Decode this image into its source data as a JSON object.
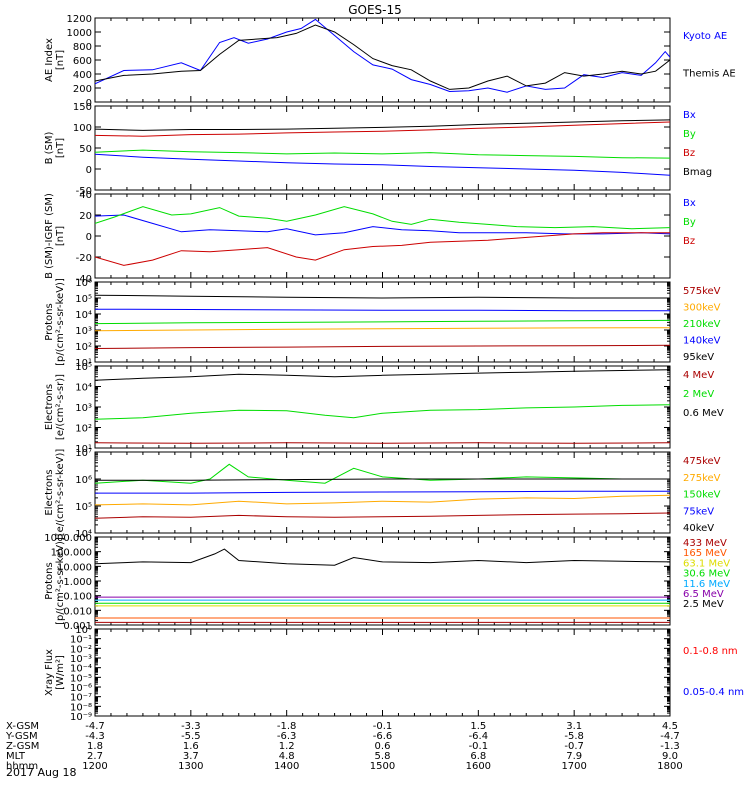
{
  "title": "GOES-15",
  "date": "2017 Aug 18",
  "ephemeris": {
    "row_labels": [
      "X-GSM",
      "Y-GSM",
      "Z-GSM",
      "MLT",
      "hhmm"
    ],
    "columns": [
      [
        "-4.7",
        "-4.3",
        "1.8",
        "2.7",
        "1200"
      ],
      [
        "-3.3",
        "-5.5",
        "1.6",
        "3.7",
        "1300"
      ],
      [
        "-1.8",
        "-6.3",
        "1.2",
        "4.8",
        "1400"
      ],
      [
        "-0.1",
        "-6.6",
        "0.6",
        "5.8",
        "1500"
      ],
      [
        "1.5",
        "-6.4",
        "-0.1",
        "6.8",
        "1600"
      ],
      [
        "3.1",
        "-5.8",
        "-0.7",
        "7.9",
        "1700"
      ],
      [
        "4.5",
        "-4.7",
        "-1.3",
        "9.0",
        "1800"
      ]
    ]
  },
  "chart_data": [
    {
      "type": "line",
      "ylabel": "AE Index [nT]",
      "ylim": [
        0,
        1200
      ],
      "yticks": [
        "0",
        "200",
        "400",
        "600",
        "800",
        "1000",
        "1200"
      ],
      "x_hours": [
        12,
        18
      ],
      "series": [
        {
          "name": "Kyoto AE",
          "color": "#0000ff",
          "x": [
            12.0,
            12.3,
            12.6,
            12.9,
            13.1,
            13.3,
            13.45,
            13.6,
            13.8,
            14.0,
            14.15,
            14.3,
            14.5,
            14.7,
            14.9,
            15.1,
            15.3,
            15.5,
            15.7,
            15.9,
            16.1,
            16.3,
            16.5,
            16.7,
            16.9,
            17.1,
            17.3,
            17.5,
            17.7,
            17.85,
            17.95,
            18.0
          ],
          "y": [
            260,
            450,
            460,
            560,
            450,
            850,
            920,
            840,
            900,
            1000,
            1050,
            1180,
            950,
            720,
            530,
            470,
            320,
            250,
            150,
            160,
            200,
            140,
            230,
            180,
            200,
            390,
            350,
            420,
            380,
            560,
            720,
            640
          ]
        },
        {
          "name": "Themis AE",
          "color": "#000000",
          "x": [
            12.0,
            12.3,
            12.6,
            12.9,
            13.1,
            13.3,
            13.5,
            13.7,
            13.9,
            14.1,
            14.3,
            14.5,
            14.7,
            14.9,
            15.1,
            15.3,
            15.5,
            15.7,
            15.9,
            16.1,
            16.3,
            16.5,
            16.7,
            16.9,
            17.1,
            17.3,
            17.5,
            17.7,
            17.85,
            18.0
          ],
          "y": [
            300,
            380,
            400,
            440,
            450,
            680,
            880,
            900,
            920,
            980,
            1100,
            1000,
            820,
            620,
            520,
            460,
            300,
            180,
            200,
            300,
            370,
            230,
            270,
            420,
            370,
            400,
            440,
            400,
            440,
            600
          ]
        }
      ]
    },
    {
      "type": "line",
      "ylabel": "B (SM) [nT]",
      "ylim": [
        -50,
        150
      ],
      "yticks": [
        "-50",
        "0",
        "50",
        "100",
        "150"
      ],
      "x_hours": [
        12,
        18
      ],
      "series": [
        {
          "name": "Bx",
          "color": "#0000ff",
          "x": [
            12.0,
            12.5,
            13.0,
            13.5,
            14.0,
            14.5,
            15.0,
            15.5,
            16.0,
            16.5,
            17.0,
            17.5,
            18.0
          ],
          "y": [
            35,
            28,
            23,
            19,
            15,
            12,
            10,
            6,
            3,
            0,
            -3,
            -8,
            -15
          ]
        },
        {
          "name": "By",
          "color": "#00dd00",
          "x": [
            12.0,
            12.5,
            13.0,
            13.5,
            14.0,
            14.5,
            15.0,
            15.5,
            16.0,
            16.5,
            17.0,
            17.5,
            18.0
          ],
          "y": [
            40,
            45,
            41,
            39,
            36,
            38,
            36,
            39,
            34,
            32,
            30,
            27,
            26
          ]
        },
        {
          "name": "Bz",
          "color": "#cc0000",
          "x": [
            12.0,
            12.5,
            13.0,
            13.5,
            14.0,
            14.5,
            15.0,
            15.5,
            16.0,
            16.5,
            17.0,
            17.5,
            18.0
          ],
          "y": [
            80,
            78,
            82,
            83,
            86,
            88,
            90,
            93,
            97,
            100,
            104,
            108,
            112
          ]
        },
        {
          "name": "Bmag",
          "color": "#000000",
          "x": [
            12.0,
            12.5,
            13.0,
            13.5,
            14.0,
            14.5,
            15.0,
            15.5,
            16.0,
            16.5,
            17.0,
            17.5,
            18.0
          ],
          "y": [
            95,
            92,
            94,
            94,
            95,
            97,
            99,
            102,
            106,
            109,
            112,
            115,
            117
          ]
        }
      ]
    },
    {
      "type": "line",
      "ylabel": "B (SM)-IGRF (SM) [nT]",
      "ylim": [
        -40,
        40
      ],
      "yticks": [
        "-40",
        "-20",
        "0",
        "20",
        "40"
      ],
      "x_hours": [
        12,
        18
      ],
      "series": [
        {
          "name": "Bx",
          "color": "#0000ff",
          "x": [
            12.0,
            12.3,
            12.6,
            12.9,
            13.2,
            13.5,
            13.8,
            14.0,
            14.3,
            14.6,
            14.9,
            15.2,
            15.5,
            15.8,
            16.1,
            16.5,
            16.9,
            17.3,
            17.7,
            18.0
          ],
          "y": [
            19,
            20,
            12,
            4,
            6,
            5,
            4,
            7,
            1,
            3,
            9,
            6,
            5,
            3,
            3,
            3,
            2,
            2,
            3,
            2
          ]
        },
        {
          "name": "By",
          "color": "#00dd00",
          "x": [
            12.0,
            12.2,
            12.5,
            12.8,
            13.0,
            13.3,
            13.5,
            13.8,
            14.0,
            14.3,
            14.6,
            14.9,
            15.1,
            15.3,
            15.5,
            15.8,
            16.1,
            16.4,
            16.8,
            17.2,
            17.6,
            18.0
          ],
          "y": [
            12,
            18,
            28,
            20,
            21,
            27,
            19,
            17,
            14,
            20,
            28,
            21,
            14,
            11,
            16,
            13,
            11,
            9,
            8,
            9,
            7,
            8
          ]
        },
        {
          "name": "Bz",
          "color": "#cc0000",
          "x": [
            12.0,
            12.3,
            12.6,
            12.9,
            13.2,
            13.5,
            13.8,
            14.1,
            14.3,
            14.6,
            14.9,
            15.2,
            15.5,
            15.8,
            16.1,
            16.4,
            16.7,
            17.0,
            17.3,
            17.6,
            18.0
          ],
          "y": [
            -20,
            -28,
            -23,
            -14,
            -15,
            -13,
            -11,
            -20,
            -23,
            -13,
            -10,
            -9,
            -6,
            -5,
            -4,
            -2,
            0,
            2,
            3,
            3,
            3
          ]
        }
      ]
    },
    {
      "type": "line",
      "ylabel": "Protons [p/(cm²-s-sr-keV)]",
      "yscale": "log",
      "ylim": [
        10,
        1000000
      ],
      "yticks": [
        "10¹",
        "10²",
        "10³",
        "10⁴",
        "10⁵",
        "10⁶"
      ],
      "x_hours": [
        12,
        18
      ],
      "series": [
        {
          "name": "575keV",
          "color": "#aa0000",
          "x": [
            12,
            13,
            14,
            15,
            16,
            17,
            18
          ],
          "y": [
            70,
            80,
            85,
            95,
            100,
            105,
            110
          ]
        },
        {
          "name": "300keV",
          "color": "#ffaa00",
          "x": [
            12,
            13,
            14,
            15,
            16,
            17,
            18
          ],
          "y": [
            900,
            1000,
            1100,
            1200,
            1300,
            1350,
            1400
          ]
        },
        {
          "name": "210keV",
          "color": "#00dd00",
          "x": [
            12,
            13,
            14,
            15,
            16,
            17,
            18
          ],
          "y": [
            2500,
            2800,
            3000,
            3200,
            3500,
            3800,
            4000
          ]
        },
        {
          "name": "140keV",
          "color": "#0000ff",
          "x": [
            12,
            13,
            14,
            15,
            16,
            17,
            18
          ],
          "y": [
            20000,
            19000,
            18000,
            17000,
            17000,
            16000,
            16000
          ]
        },
        {
          "name": "95keV",
          "color": "#000000",
          "x": [
            12,
            13,
            14,
            15,
            16,
            17,
            18
          ],
          "y": [
            150000,
            130000,
            110000,
            100000,
            110000,
            100000,
            100000
          ]
        }
      ]
    },
    {
      "type": "line",
      "ylabel": "Electrons [e/(cm²-s-sr)]",
      "yscale": "log",
      "ylim": [
        10,
        100000
      ],
      "yticks": [
        "10¹",
        "10²",
        "10³",
        "10⁴",
        "10⁵"
      ],
      "x_hours": [
        12,
        18
      ],
      "series": [
        {
          "name": "4 MeV",
          "color": "#aa0000",
          "x": [
            12,
            13,
            14,
            15,
            16,
            17,
            18
          ],
          "y": [
            18,
            17,
            18,
            17,
            18,
            17,
            18
          ]
        },
        {
          "name": "2 MeV",
          "color": "#00dd00",
          "x": [
            12,
            12.5,
            13,
            13.5,
            14,
            14.4,
            14.7,
            15,
            15.5,
            16,
            16.5,
            17,
            17.5,
            18
          ],
          "y": [
            250,
            300,
            500,
            700,
            650,
            400,
            300,
            500,
            700,
            750,
            900,
            1000,
            1200,
            1300
          ]
        },
        {
          "name": "0.6 MeV",
          "color": "#000000",
          "x": [
            12,
            12.5,
            13,
            13.5,
            14,
            14.5,
            15,
            15.5,
            16,
            16.5,
            17,
            17.5,
            18
          ],
          "y": [
            20000,
            25000,
            30000,
            40000,
            35000,
            30000,
            35000,
            40000,
            45000,
            50000,
            55000,
            60000,
            65000
          ]
        }
      ]
    },
    {
      "type": "line",
      "ylabel": "Electrons [e/(cm²-s-sr-keV)]",
      "yscale": "log",
      "ylim": [
        10000,
        10000000
      ],
      "yticks": [
        "10⁴",
        "10⁵",
        "10⁶",
        "10⁷"
      ],
      "x_hours": [
        12,
        18
      ],
      "series": [
        {
          "name": "475keV",
          "color": "#aa0000",
          "x": [
            12,
            12.5,
            13,
            13.5,
            14,
            14.5,
            15,
            15.5,
            16,
            16.5,
            17,
            17.5,
            18
          ],
          "y": [
            35000,
            40000,
            38000,
            45000,
            40000,
            38000,
            40000,
            42000,
            45000,
            48000,
            50000,
            52000,
            55000
          ]
        },
        {
          "name": "275keV",
          "color": "#ffaa00",
          "x": [
            12,
            12.5,
            13,
            13.5,
            14,
            14.5,
            15,
            15.5,
            16,
            16.5,
            17,
            17.5,
            18
          ],
          "y": [
            110000,
            120000,
            110000,
            150000,
            120000,
            130000,
            150000,
            140000,
            180000,
            200000,
            190000,
            230000,
            250000
          ]
        },
        {
          "name": "150keV",
          "color": "#00dd00",
          "x": [
            12,
            12.5,
            13,
            13.2,
            13.4,
            13.6,
            14,
            14.4,
            14.7,
            15,
            15.5,
            16,
            16.5,
            17,
            17.5,
            18
          ],
          "y": [
            700000,
            900000,
            700000,
            1000000,
            3500000,
            1200000,
            900000,
            700000,
            2500000,
            1200000,
            900000,
            1000000,
            1200000,
            1100000,
            1000000,
            1000000
          ]
        },
        {
          "name": "75keV",
          "color": "#0000ff",
          "x": [
            12,
            13,
            14,
            15,
            16,
            17,
            18
          ],
          "y": [
            300000,
            300000,
            320000,
            330000,
            340000,
            350000,
            350000
          ]
        },
        {
          "name": "40keV",
          "color": "#000000",
          "x": [
            12,
            13,
            14,
            15,
            16,
            17,
            18
          ],
          "y": [
            900000,
            900000,
            950000,
            1000000,
            1000000,
            1000000,
            1000000
          ]
        }
      ]
    },
    {
      "type": "line",
      "ylabel": "Protons [p/(cm²-s-sr-keV)]",
      "yscale": "log",
      "ylim": [
        0.001,
        1000
      ],
      "yticks": [
        "0.001",
        "0.010",
        "0.100",
        "1.000",
        "10.000",
        "100.000",
        "1000.000"
      ],
      "x_hours": [
        12,
        18
      ],
      "series": [
        {
          "name": "433 MeV",
          "color": "#aa0000",
          "x": [
            12,
            15,
            18
          ],
          "y": [
            0.0015,
            0.0015,
            0.0015
          ]
        },
        {
          "name": "165 MeV",
          "color": "#ff5500",
          "x": [
            12,
            15,
            18
          ],
          "y": [
            0.003,
            0.003,
            0.003
          ]
        },
        {
          "name": "63.1 MeV",
          "color": "#dddd00",
          "x": [
            12,
            15,
            18
          ],
          "y": [
            0.02,
            0.02,
            0.02
          ]
        },
        {
          "name": "30.6 MeV",
          "color": "#00dd00",
          "x": [
            12,
            15,
            18
          ],
          "y": [
            0.03,
            0.03,
            0.03
          ]
        },
        {
          "name": "11.6 MeV",
          "color": "#00aaff",
          "x": [
            12,
            15,
            18
          ],
          "y": [
            0.05,
            0.05,
            0.05
          ]
        },
        {
          "name": "6.5 MeV",
          "color": "#8800aa",
          "x": [
            12,
            15,
            18
          ],
          "y": [
            0.08,
            0.08,
            0.08
          ]
        },
        {
          "name": "2.5 MeV",
          "color": "#000000",
          "x": [
            12,
            12.5,
            13,
            13.25,
            13.35,
            13.5,
            14,
            14.5,
            14.7,
            15,
            15.5,
            16,
            16.5,
            17,
            17.5,
            18
          ],
          "y": [
            15,
            20,
            18,
            70,
            150,
            25,
            15,
            12,
            40,
            20,
            18,
            25,
            18,
            25,
            22,
            20
          ]
        }
      ]
    },
    {
      "type": "line",
      "ylabel": "Xray Flux [W/m²]",
      "yscale": "log",
      "ylim": [
        1e-09,
        1
      ],
      "yticks": [
        "10⁻⁹",
        "10⁻⁸",
        "10⁻⁷",
        "10⁻⁶",
        "10⁻⁵",
        "10⁻⁴",
        "10⁻³",
        "10⁻²",
        "10⁻¹",
        "10⁰"
      ],
      "x_hours": [
        12,
        18
      ],
      "series": [
        {
          "name": "0.1-0.8 nm",
          "color": "#ff0000",
          "x": [],
          "y": []
        },
        {
          "name": "0.05-0.4 nm",
          "color": "#0000ff",
          "x": [],
          "y": []
        }
      ]
    }
  ]
}
